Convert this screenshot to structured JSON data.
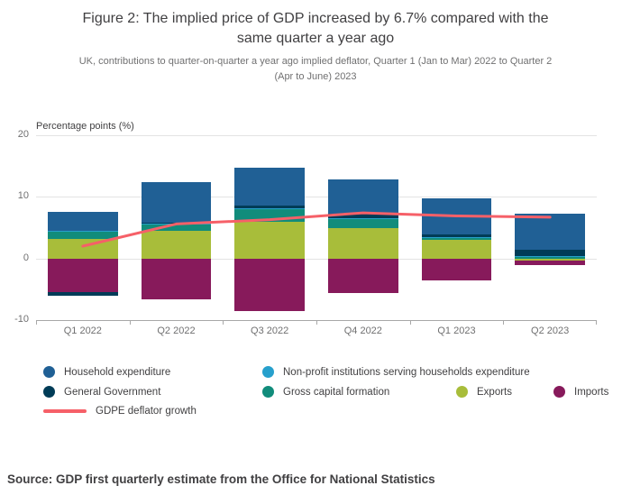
{
  "figure": {
    "title": "Figure 2: The implied price of GDP increased by 6.7% compared with the same quarter a year ago",
    "subtitle": "UK, contributions to quarter-on-quarter a year ago implied deflator, Quarter 1 (Jan to Mar) 2022 to Quarter 2 (Apr to June) 2023",
    "source": "Source: GDP first quarterly estimate from the Office for National Statistics"
  },
  "chart_data": {
    "type": "bar",
    "subtype": "stacked-bars-with-line",
    "axis_title": "Percentage points (%)",
    "ylim": [
      -10,
      20
    ],
    "yticks": [
      20,
      10,
      0,
      -10
    ],
    "grid": true,
    "legend_position": "bottom",
    "categories": [
      "Q1 2022",
      "Q2 2022",
      "Q3 2022",
      "Q4 2022",
      "Q1 2023",
      "Q2 2023"
    ],
    "series": [
      {
        "name": "Household expenditure",
        "color": "#206095",
        "values": [
          3.0,
          6.6,
          6.1,
          5.6,
          5.9,
          5.8
        ]
      },
      {
        "name": "Non-profit institutions serving households expenditure",
        "color": "#27a0cc",
        "values": [
          0.1,
          0.1,
          0.1,
          0.1,
          0.1,
          0.1
        ]
      },
      {
        "name": "General Government",
        "color": "#003c57",
        "values": [
          -0.6,
          0.2,
          0.5,
          0.7,
          0.4,
          1.0
        ]
      },
      {
        "name": "Gross capital formation",
        "color": "#118c7b",
        "values": [
          1.3,
          1.0,
          2.0,
          1.5,
          0.4,
          0.3
        ]
      },
      {
        "name": "Exports",
        "color": "#a8bd3a",
        "values": [
          3.1,
          4.5,
          6.0,
          5.0,
          3.0,
          -0.3
        ]
      },
      {
        "name": "Imports",
        "color": "#871a5b",
        "values": [
          -5.4,
          -6.6,
          -8.6,
          -5.6,
          -3.6,
          -0.8
        ]
      }
    ],
    "line_series": {
      "name": "GDPE deflator growth",
      "color": "#f66068",
      "values": [
        2.0,
        5.6,
        6.3,
        7.4,
        6.9,
        6.7
      ]
    }
  },
  "legend": {
    "rows": [
      [
        {
          "label": "Household expenditure",
          "color": "#206095",
          "marker": "circle"
        },
        {
          "label": "Non-profit institutions serving households expenditure",
          "color": "#27a0cc",
          "marker": "circle"
        }
      ],
      [
        {
          "label": "General Government",
          "color": "#003c57",
          "marker": "circle"
        },
        {
          "label": "Gross capital formation",
          "color": "#118c7b",
          "marker": "circle"
        },
        {
          "label": "Exports",
          "color": "#a8bd3a",
          "marker": "circle"
        },
        {
          "label": "Imports",
          "color": "#871a5b",
          "marker": "circle"
        }
      ],
      [
        {
          "label": "GDPE deflator growth",
          "color": "#f66068",
          "marker": "line"
        }
      ]
    ]
  }
}
